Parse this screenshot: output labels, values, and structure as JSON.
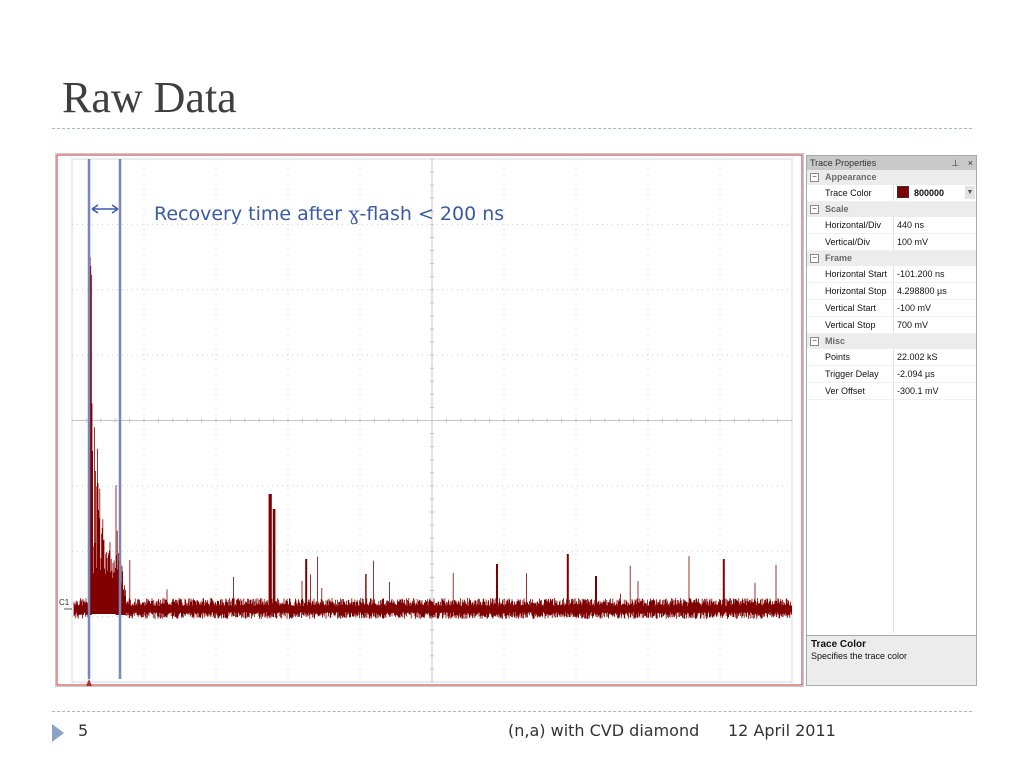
{
  "slide": {
    "title": "Raw Data",
    "page_number": "5",
    "footer_text": "(n,a) with CVD diamond",
    "footer_date": "12 April 2011"
  },
  "annotation": {
    "before_symbol": "Recovery time after ",
    "symbol": "ɣ",
    "after_symbol": "-flash < 200 ns"
  },
  "scope": {
    "channel_label": "C1",
    "trace_color": "#800000",
    "annotation_color": "#3b5aa5"
  },
  "properties": {
    "header": "Trace Properties",
    "pin_icon": "pin-icon",
    "close_icon": "close-icon",
    "categories": [
      {
        "name": "Appearance",
        "rows": [
          {
            "key": "Trace Color",
            "value": "800000",
            "swatch": "#800000",
            "dropdown": true
          }
        ]
      },
      {
        "name": "Scale",
        "rows": [
          {
            "key": "Horizontal/Div",
            "value": "440 ns"
          },
          {
            "key": "Vertical/Div",
            "value": "100 mV"
          }
        ]
      },
      {
        "name": "Frame",
        "rows": [
          {
            "key": "Horizontal Start",
            "value": "-101.200 ns"
          },
          {
            "key": "Horizontal Stop",
            "value": "4.298800 µs"
          },
          {
            "key": "Vertical Start",
            "value": "-100 mV"
          },
          {
            "key": "Vertical Stop",
            "value": "700 mV"
          }
        ]
      },
      {
        "name": "Misc",
        "rows": [
          {
            "key": "Points",
            "value": "22.002 kS"
          },
          {
            "key": "Trigger Delay",
            "value": "-2.094 µs"
          },
          {
            "key": "Ver Offset",
            "value": "-300.1 mV"
          }
        ]
      }
    ],
    "description_title": "Trace Color",
    "description_text": "Specifies the trace color"
  }
}
